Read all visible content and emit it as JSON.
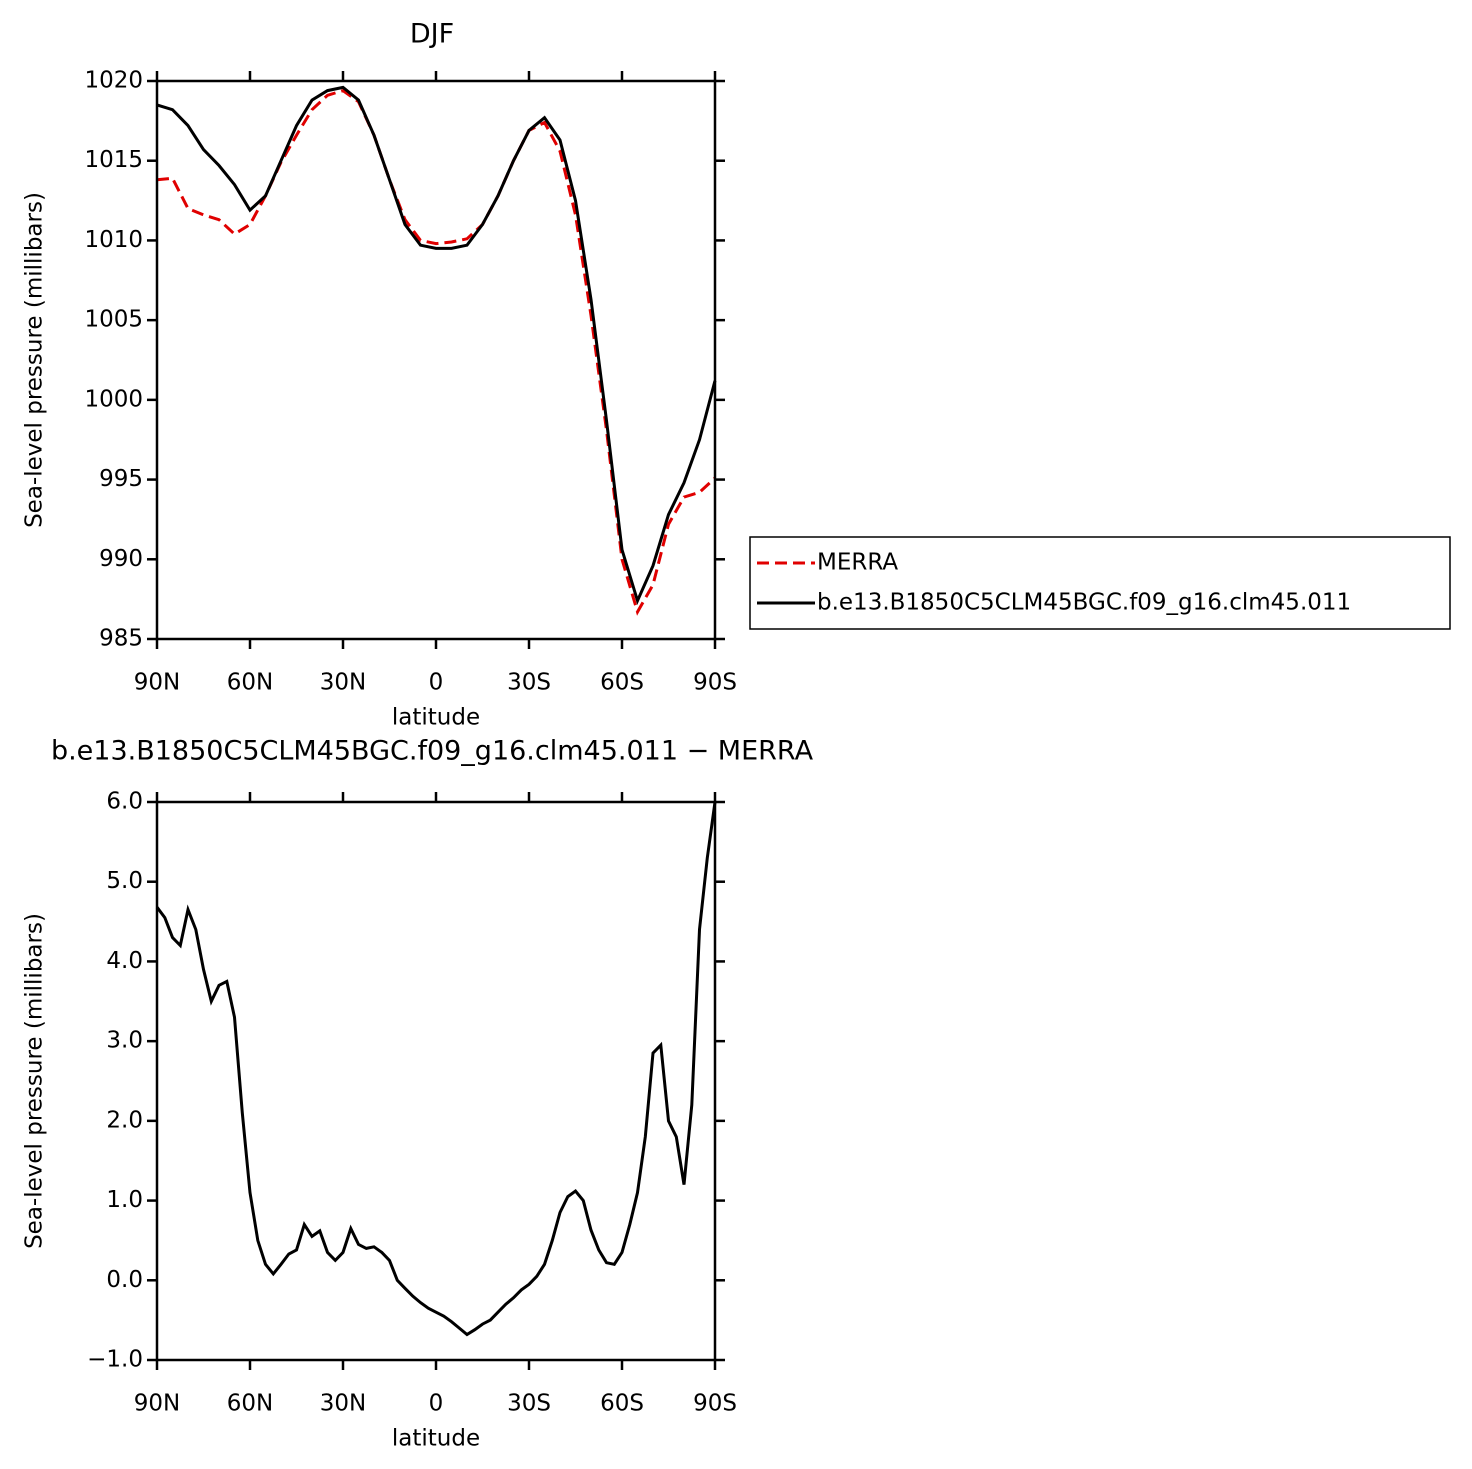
{
  "chart_data": [
    {
      "type": "line",
      "title": "DJF",
      "xlabel": "latitude",
      "ylabel": "Sea-level pressure (millibars)",
      "x": [
        90,
        85,
        80,
        75,
        70,
        65,
        60,
        55,
        50,
        45,
        40,
        35,
        30,
        25,
        20,
        15,
        10,
        5,
        0,
        -5,
        -10,
        -15,
        -20,
        -25,
        -30,
        -35,
        -40,
        -45,
        -50,
        -55,
        -60,
        -65,
        -70,
        -75,
        -80,
        -85,
        -90
      ],
      "series": [
        {
          "name": "MERRA",
          "color": "#e00000",
          "linestyle": "dashed",
          "values": [
            1013.8,
            1013.9,
            1012.0,
            1011.6,
            1011.3,
            1010.4,
            1011.0,
            1012.8,
            1014.9,
            1016.6,
            1018.2,
            1019.1,
            1019.4,
            1018.7,
            1016.6,
            1013.8,
            1011.3,
            1010.0,
            1009.8,
            1009.9,
            1010.1,
            1011.0,
            1012.8,
            1015.0,
            1016.9,
            1017.4,
            1015.6,
            1011.6,
            1005.3,
            998.1,
            990.0,
            986.7,
            988.4,
            992.2,
            993.9,
            994.2,
            995.1
          ]
        },
        {
          "name": "b.e13.B1850C5CLM45BGC.f09_g16.clm45.011",
          "color": "#000000",
          "linestyle": "solid",
          "values": [
            1018.5,
            1018.2,
            1017.2,
            1015.7,
            1014.7,
            1013.5,
            1011.9,
            1012.8,
            1015.0,
            1017.2,
            1018.8,
            1019.4,
            1019.6,
            1018.8,
            1016.6,
            1013.8,
            1011.0,
            1009.7,
            1009.5,
            1009.5,
            1009.7,
            1011.0,
            1012.8,
            1015.0,
            1016.9,
            1017.7,
            1016.3,
            1012.5,
            1006.3,
            998.7,
            990.6,
            987.4,
            989.6,
            992.8,
            994.8,
            997.5,
            1001.2
          ]
        }
      ],
      "xlim": [
        90,
        -90
      ],
      "xticks": [
        {
          "value": 90,
          "label": "90N"
        },
        {
          "value": 60,
          "label": "60N"
        },
        {
          "value": 30,
          "label": "30N"
        },
        0,
        {
          "value": -30,
          "label": "30S"
        },
        {
          "value": -60,
          "label": "60S"
        },
        {
          "value": -90,
          "label": "90S"
        }
      ],
      "ylim": [
        985,
        1020
      ],
      "yticks": [
        985,
        990,
        995,
        1000,
        1005,
        1010,
        1015,
        1020
      ],
      "grid": false,
      "legend": "outside-right"
    },
    {
      "type": "line",
      "title": "b.e13.B1850C5CLM45BGC.f09_g16.clm45.011 − MERRA",
      "xlabel": "latitude",
      "ylabel": "Sea-level pressure (millibars)",
      "x": [
        90,
        87.5,
        85,
        82.5,
        80,
        77.5,
        75,
        72.5,
        70,
        67.5,
        65,
        62.5,
        60,
        57.5,
        55,
        52.5,
        50,
        47.5,
        45,
        42.5,
        40,
        37.5,
        35,
        32.5,
        30,
        27.5,
        25,
        22.5,
        20,
        17.5,
        15,
        12.5,
        10,
        7.5,
        5,
        2.5,
        0,
        -2.5,
        -5,
        -7.5,
        -10,
        -12.5,
        -15,
        -17.5,
        -20,
        -22.5,
        -25,
        -27.5,
        -30,
        -32.5,
        -35,
        -37.5,
        -40,
        -42.5,
        -45,
        -47.5,
        -50,
        -52.5,
        -55,
        -57.5,
        -60,
        -62.5,
        -65,
        -67.5,
        -70,
        -72.5,
        -75,
        -77.5,
        -80,
        -82.5,
        -85,
        -87.5,
        -90
      ],
      "series": [
        {
          "color": "#000000",
          "linestyle": "solid",
          "values": [
            4.68,
            4.55,
            4.3,
            4.2,
            4.65,
            4.4,
            3.9,
            3.5,
            3.7,
            3.75,
            3.3,
            2.1,
            1.1,
            0.5,
            0.2,
            0.08,
            0.2,
            0.33,
            0.38,
            0.7,
            0.55,
            0.62,
            0.35,
            0.25,
            0.35,
            0.65,
            0.45,
            0.4,
            0.42,
            0.35,
            0.25,
            0.0,
            -0.1,
            -0.2,
            -0.28,
            -0.35,
            -0.4,
            -0.45,
            -0.52,
            -0.6,
            -0.68,
            -0.62,
            -0.55,
            -0.5,
            -0.4,
            -0.3,
            -0.22,
            -0.12,
            -0.05,
            0.05,
            0.2,
            0.5,
            0.85,
            1.05,
            1.12,
            1.0,
            0.63,
            0.38,
            0.22,
            0.2,
            0.35,
            0.7,
            1.1,
            1.8,
            2.85,
            2.95,
            2.0,
            1.8,
            1.2,
            2.2,
            4.4,
            5.3,
            6.0
          ]
        }
      ],
      "xlim": [
        90,
        -90
      ],
      "xticks": [
        {
          "value": 90,
          "label": "90N"
        },
        {
          "value": 60,
          "label": "60N"
        },
        {
          "value": 30,
          "label": "30N"
        },
        0,
        {
          "value": -30,
          "label": "30S"
        },
        {
          "value": -60,
          "label": "60S"
        },
        {
          "value": -90,
          "label": "90S"
        }
      ],
      "ylim": [
        -1,
        6
      ],
      "yticks": [
        {
          "value": -1,
          "label": "−1.0"
        },
        {
          "value": 0,
          "label": "0.0"
        },
        {
          "value": 1,
          "label": "1.0"
        },
        {
          "value": 2,
          "label": "2.0"
        },
        {
          "value": 3,
          "label": "3.0"
        },
        {
          "value": 4,
          "label": "4.0"
        },
        {
          "value": 5,
          "label": "5.0"
        },
        {
          "value": 6,
          "label": "6.0"
        }
      ],
      "grid": false
    }
  ]
}
